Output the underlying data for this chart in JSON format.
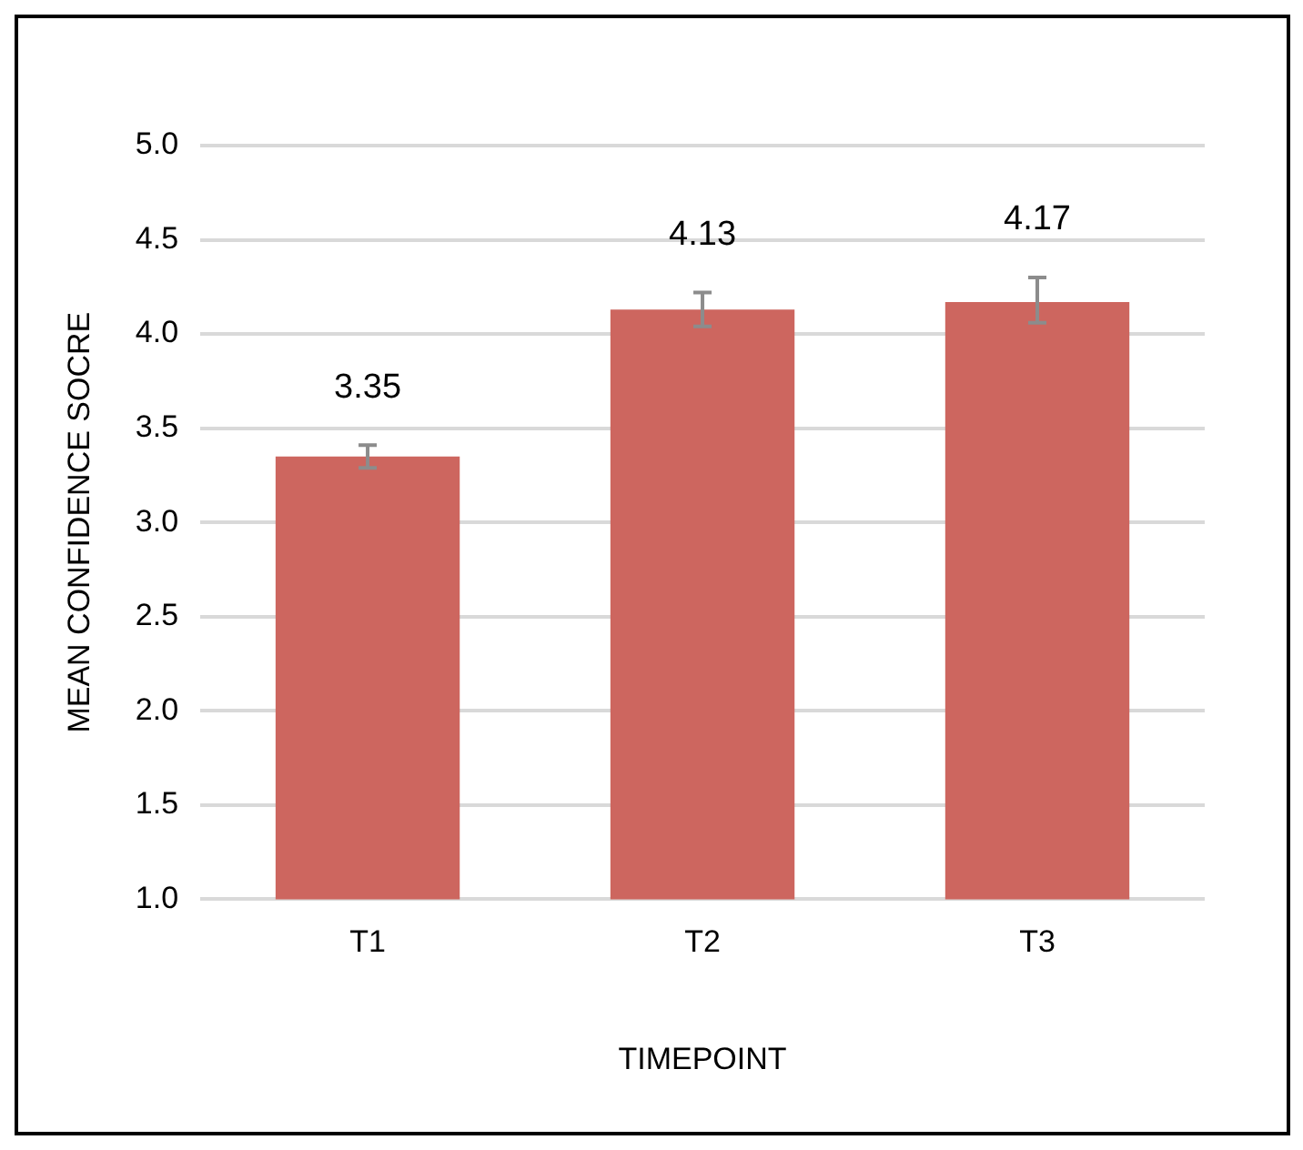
{
  "chart_data": {
    "type": "bar",
    "xlabel": "TIMEPOINT",
    "ylabel": "MEAN CONFIDENCE SOCRE",
    "categories": [
      "T1",
      "T2",
      "T3"
    ],
    "series": [
      {
        "color": "#cd665f",
        "values": [
          3.35,
          4.13,
          4.17
        ],
        "errors": [
          [
            3.29,
            3.41
          ],
          [
            4.04,
            4.22
          ],
          [
            4.06,
            4.3
          ]
        ]
      }
    ],
    "ylim": [
      1,
      5
    ],
    "yticks": [
      {
        "value": 1,
        "label": "1.0"
      },
      {
        "value": 1.5,
        "label": "1.5"
      },
      {
        "value": 2,
        "label": "2.0"
      },
      {
        "value": 2.5,
        "label": "2.5"
      },
      {
        "value": 3,
        "label": "3.0"
      },
      {
        "value": 3.5,
        "label": "3.5"
      },
      {
        "value": 4,
        "label": "4.0"
      },
      {
        "value": 4.5,
        "label": "4.5"
      },
      {
        "value": 5,
        "label": "5.0"
      }
    ],
    "grid": "y",
    "legend": false,
    "data_labels": true
  }
}
